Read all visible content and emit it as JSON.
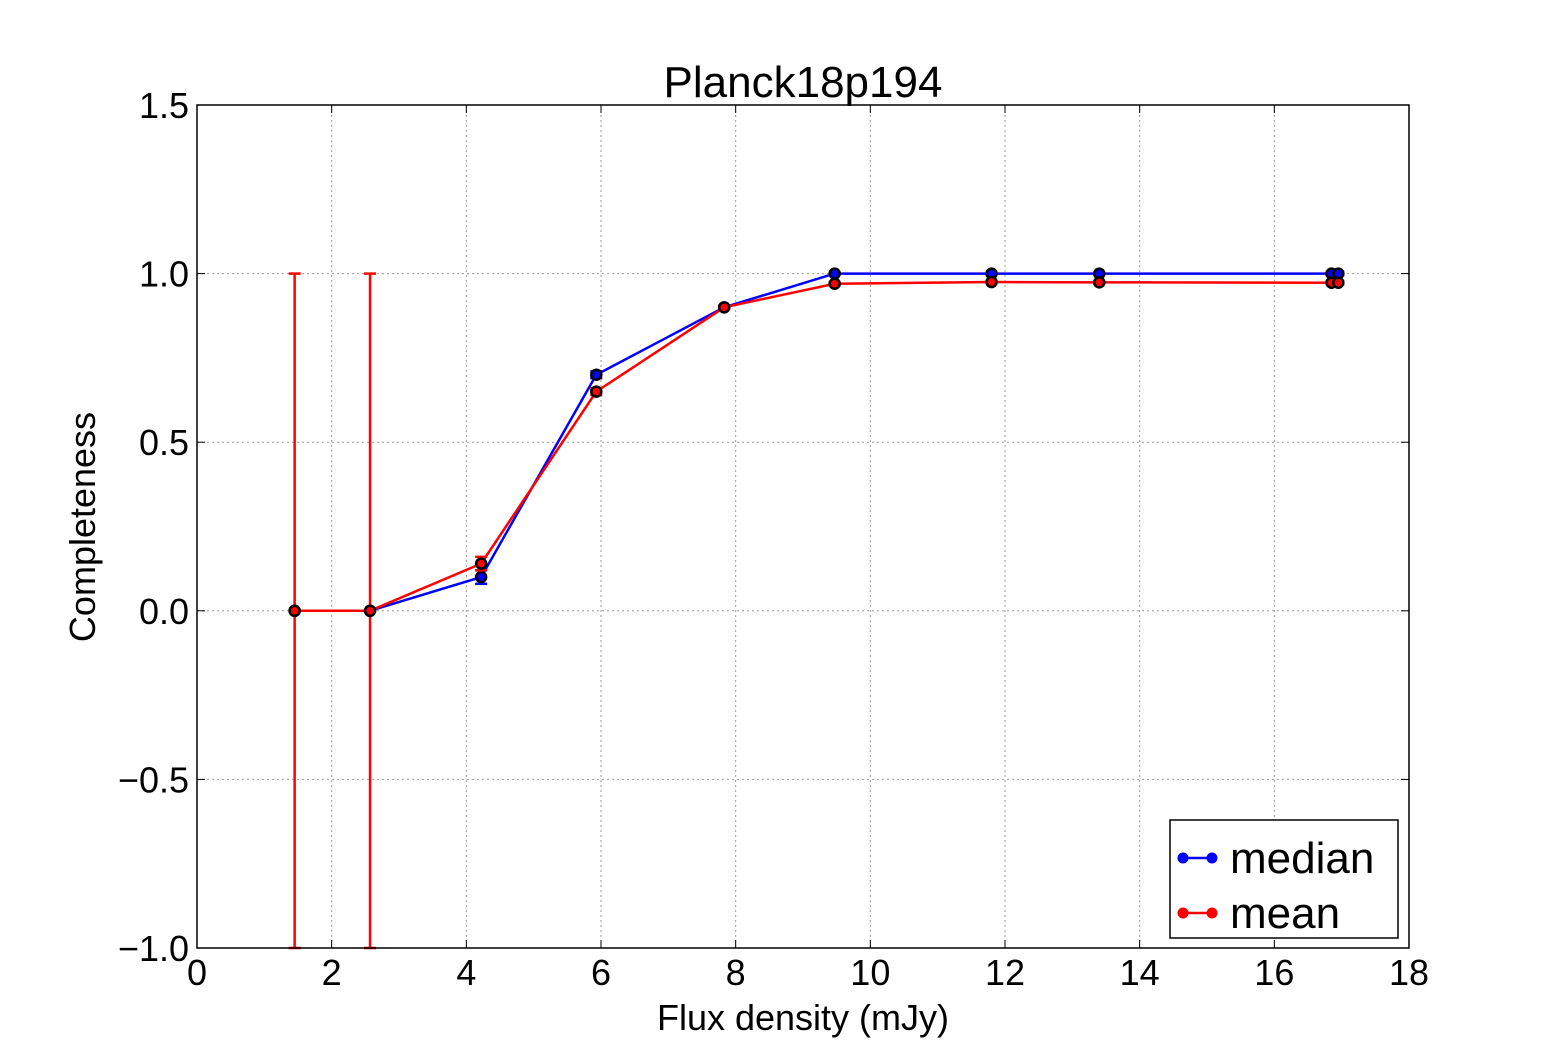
{
  "chart_data": {
    "type": "line",
    "title": "Planck18p194",
    "xlabel": "Flux density (mJy)",
    "ylabel": "Completeness",
    "xlim": [
      0,
      18
    ],
    "ylim": [
      -1.0,
      1.5
    ],
    "xticks": [
      0,
      2,
      4,
      6,
      8,
      10,
      12,
      14,
      16,
      18
    ],
    "xtick_labels": [
      "0",
      "2",
      "4",
      "6",
      "8",
      "10",
      "12",
      "14",
      "16",
      "18"
    ],
    "yticks": [
      -1.0,
      -0.5,
      0.0,
      0.5,
      1.0,
      1.5
    ],
    "ytick_labels": [
      "−1.0",
      "−0.5",
      "0.0",
      "0.5",
      "1.0",
      "1.5"
    ],
    "grid": true,
    "legend_position": "bottom-right",
    "series": [
      {
        "name": "median",
        "color": "#0000ff",
        "x": [
          1.45,
          2.57,
          4.22,
          5.93,
          7.83,
          9.47,
          11.8,
          13.4,
          16.85,
          16.95
        ],
        "y": [
          0.0,
          0.0,
          0.1,
          0.7,
          0.9,
          1.0,
          1.0,
          1.0,
          1.0,
          1.0
        ],
        "err": [
          0.0,
          0.0,
          0.02,
          0.01,
          0.005,
          0.003,
          0.0,
          0.0,
          0.005,
          0.005
        ]
      },
      {
        "name": "mean",
        "color": "#ff0000",
        "x": [
          1.45,
          2.57,
          4.22,
          5.93,
          7.83,
          9.47,
          11.8,
          13.4,
          16.85,
          16.95
        ],
        "y": [
          0.0,
          0.0,
          0.14,
          0.65,
          0.9,
          0.97,
          0.975,
          0.974,
          0.973,
          0.973
        ],
        "err": [
          1.0,
          1.0,
          0.02,
          0.01,
          0.005,
          0.005,
          0.004,
          0.004,
          0.005,
          0.005
        ]
      }
    ]
  }
}
